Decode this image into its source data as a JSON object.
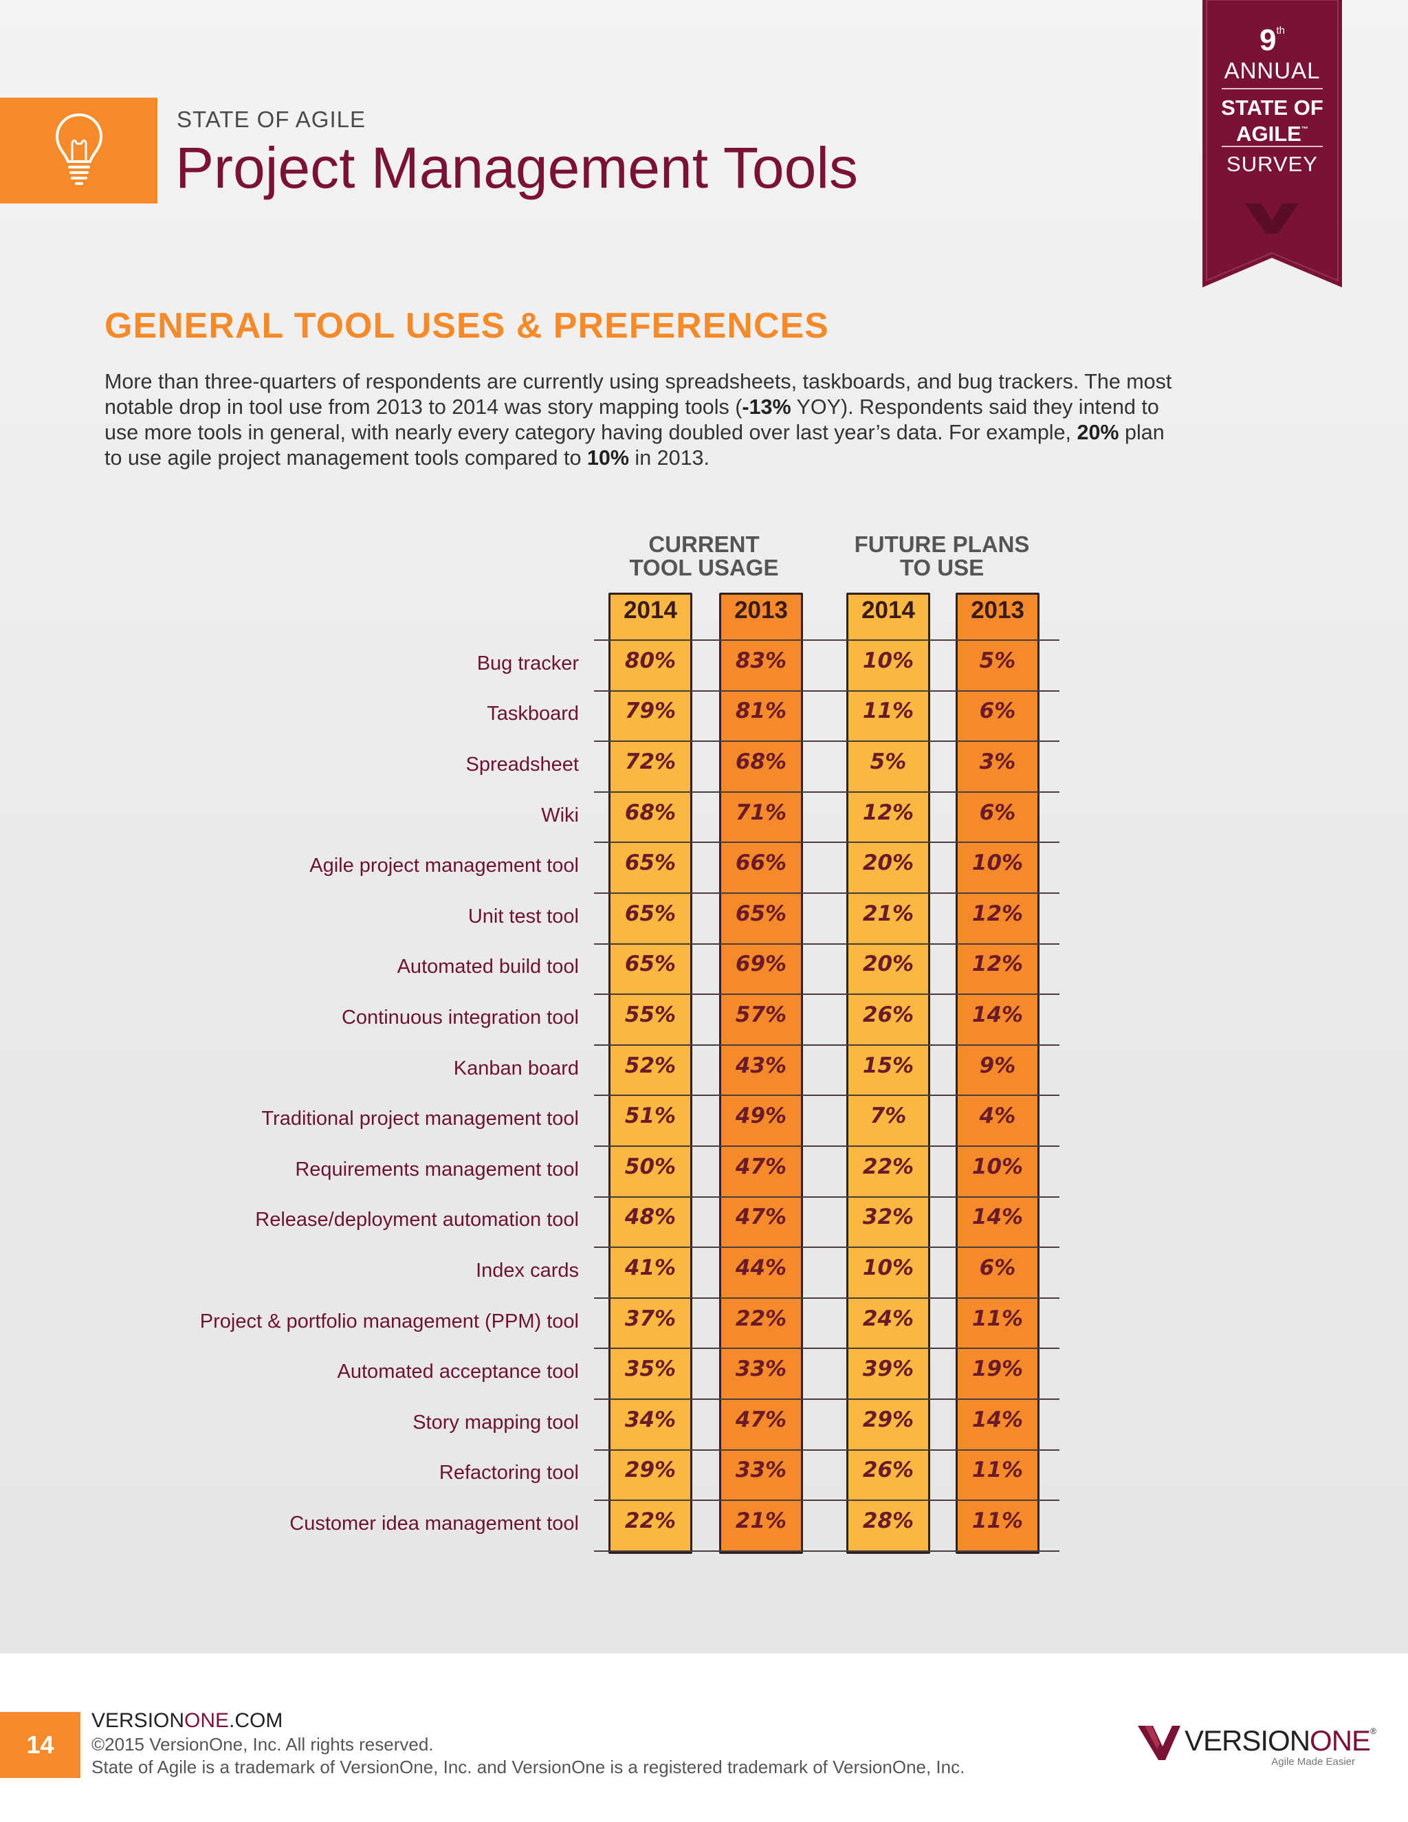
{
  "header": {
    "kicker": "STATE OF AGILE",
    "title": "Project Management Tools",
    "icon": "lightbulb-icon"
  },
  "badge": {
    "number": "9",
    "ordinal": "th",
    "annual": "ANNUAL",
    "state_line1": "STATE OF",
    "state_line2": "AGILE",
    "tm": "™",
    "survey": "SURVEY",
    "color": "#7a1234"
  },
  "section": {
    "heading": "GENERAL TOOL USES & PREFERENCES",
    "intro_1": "More than three-quarters of respondents are currently using spreadsheets, taskboards, and bug trackers. The most notable drop in tool use from 2013 to 2014 was story mapping tools (",
    "intro_b1": "-13%",
    "intro_2": " YOY). Respondents said they intend to use more tools in general, with nearly every category having doubled over last year’s data. For example, ",
    "intro_b2": "20%",
    "intro_3": " plan to use agile project management tools compared to ",
    "intro_b3": "10%",
    "intro_4": " in 2013."
  },
  "table": {
    "group_current_line1": "CURRENT",
    "group_current_line2": "TOOL USAGE",
    "group_future_line1": "FUTURE PLANS",
    "group_future_line2": "TO USE",
    "col_2014": "2014",
    "col_2013": "2013",
    "colors": {
      "col_2014": "#f9b842",
      "col_2013": "#f48a2c"
    },
    "rows": [
      {
        "label": "Bug tracker",
        "cur2014": "80%",
        "cur2013": "83%",
        "fut2014": "10%",
        "fut2013": "5%"
      },
      {
        "label": "Taskboard",
        "cur2014": "79%",
        "cur2013": "81%",
        "fut2014": "11%",
        "fut2013": "6%"
      },
      {
        "label": "Spreadsheet",
        "cur2014": "72%",
        "cur2013": "68%",
        "fut2014": "5%",
        "fut2013": "3%"
      },
      {
        "label": "Wiki",
        "cur2014": "68%",
        "cur2013": "71%",
        "fut2014": "12%",
        "fut2013": "6%"
      },
      {
        "label": "Agile project management tool",
        "cur2014": "65%",
        "cur2013": "66%",
        "fut2014": "20%",
        "fut2013": "10%"
      },
      {
        "label": "Unit test tool",
        "cur2014": "65%",
        "cur2013": "65%",
        "fut2014": "21%",
        "fut2013": "12%"
      },
      {
        "label": "Automated build tool",
        "cur2014": "65%",
        "cur2013": "69%",
        "fut2014": "20%",
        "fut2013": "12%"
      },
      {
        "label": "Continuous integration tool",
        "cur2014": "55%",
        "cur2013": "57%",
        "fut2014": "26%",
        "fut2013": "14%"
      },
      {
        "label": "Kanban board",
        "cur2014": "52%",
        "cur2013": "43%",
        "fut2014": "15%",
        "fut2013": "9%"
      },
      {
        "label": "Traditional project management tool",
        "cur2014": "51%",
        "cur2013": "49%",
        "fut2014": "7%",
        "fut2013": "4%"
      },
      {
        "label": "Requirements management tool",
        "cur2014": "50%",
        "cur2013": "47%",
        "fut2014": "22%",
        "fut2013": "10%"
      },
      {
        "label": "Release/deployment automation tool",
        "cur2014": "48%",
        "cur2013": "47%",
        "fut2014": "32%",
        "fut2013": "14%"
      },
      {
        "label": "Index cards",
        "cur2014": "41%",
        "cur2013": "44%",
        "fut2014": "10%",
        "fut2013": "6%"
      },
      {
        "label": "Project & portfolio management (PPM) tool",
        "cur2014": "37%",
        "cur2013": "22%",
        "fut2014": "24%",
        "fut2013": "11%"
      },
      {
        "label": "Automated acceptance tool",
        "cur2014": "35%",
        "cur2013": "33%",
        "fut2014": "39%",
        "fut2013": "19%"
      },
      {
        "label": "Story mapping tool",
        "cur2014": "34%",
        "cur2013": "47%",
        "fut2014": "29%",
        "fut2013": "14%"
      },
      {
        "label": "Refactoring tool",
        "cur2014": "29%",
        "cur2013": "33%",
        "fut2014": "26%",
        "fut2013": "11%"
      },
      {
        "label": "Customer idea management tool",
        "cur2014": "22%",
        "cur2013": "21%",
        "fut2014": "28%",
        "fut2013": "11%"
      }
    ]
  },
  "footer": {
    "page_number": "14",
    "site_a": "VERSION",
    "site_b": "ONE",
    "site_c": ".COM",
    "copyright": "©2015 VersionOne, Inc. All rights reserved.",
    "trademark": "State of Agile is a trademark of VersionOne, Inc. and VersionOne is a registered trademark of VersionOne, Inc.",
    "logo_a": "VERSION",
    "logo_b": "ONE",
    "logo_reg": "®",
    "logo_tagline": "Agile Made Easier",
    "logo_icon": "versionone-v-icon"
  }
}
